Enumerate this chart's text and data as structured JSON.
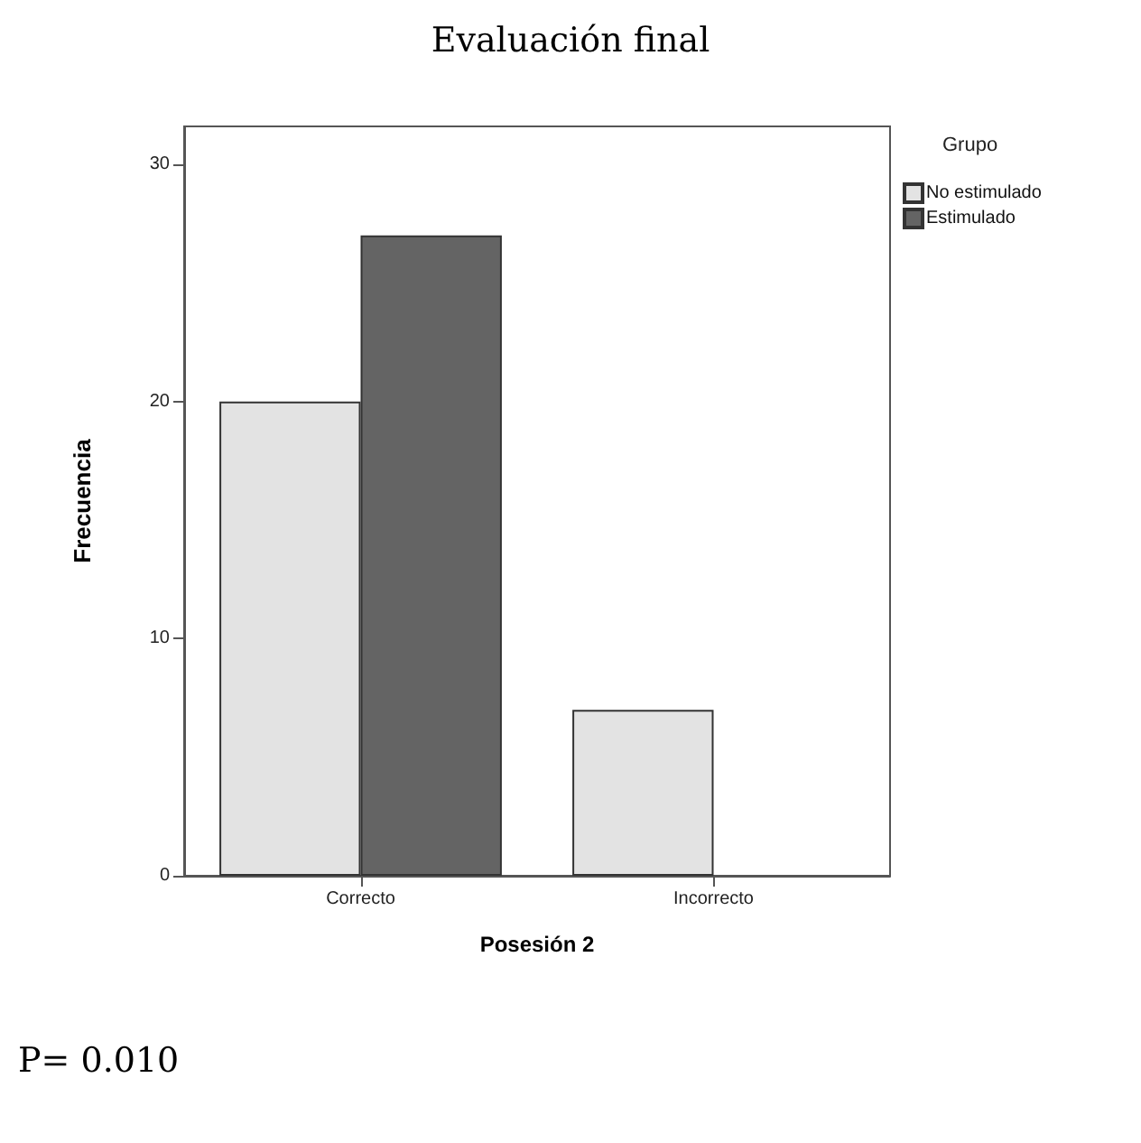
{
  "chart_data": {
    "type": "bar",
    "title": "Evaluación final",
    "xlabel": "Posesión 2",
    "ylabel": "Frecuencia",
    "legend_title": "Grupo",
    "categories": [
      "Correcto",
      "Incorrecto"
    ],
    "series": [
      {
        "name": "No estimulado",
        "color": "#e3e3e3",
        "values": [
          20,
          7
        ]
      },
      {
        "name": "Estimulado",
        "color": "#646464",
        "values": [
          27,
          0
        ]
      }
    ],
    "ylim": [
      0,
      31.6
    ],
    "yticks": [
      0,
      10,
      20,
      30
    ],
    "grid": false,
    "legend": "top right",
    "annotations": [
      "P= 0.010"
    ]
  }
}
